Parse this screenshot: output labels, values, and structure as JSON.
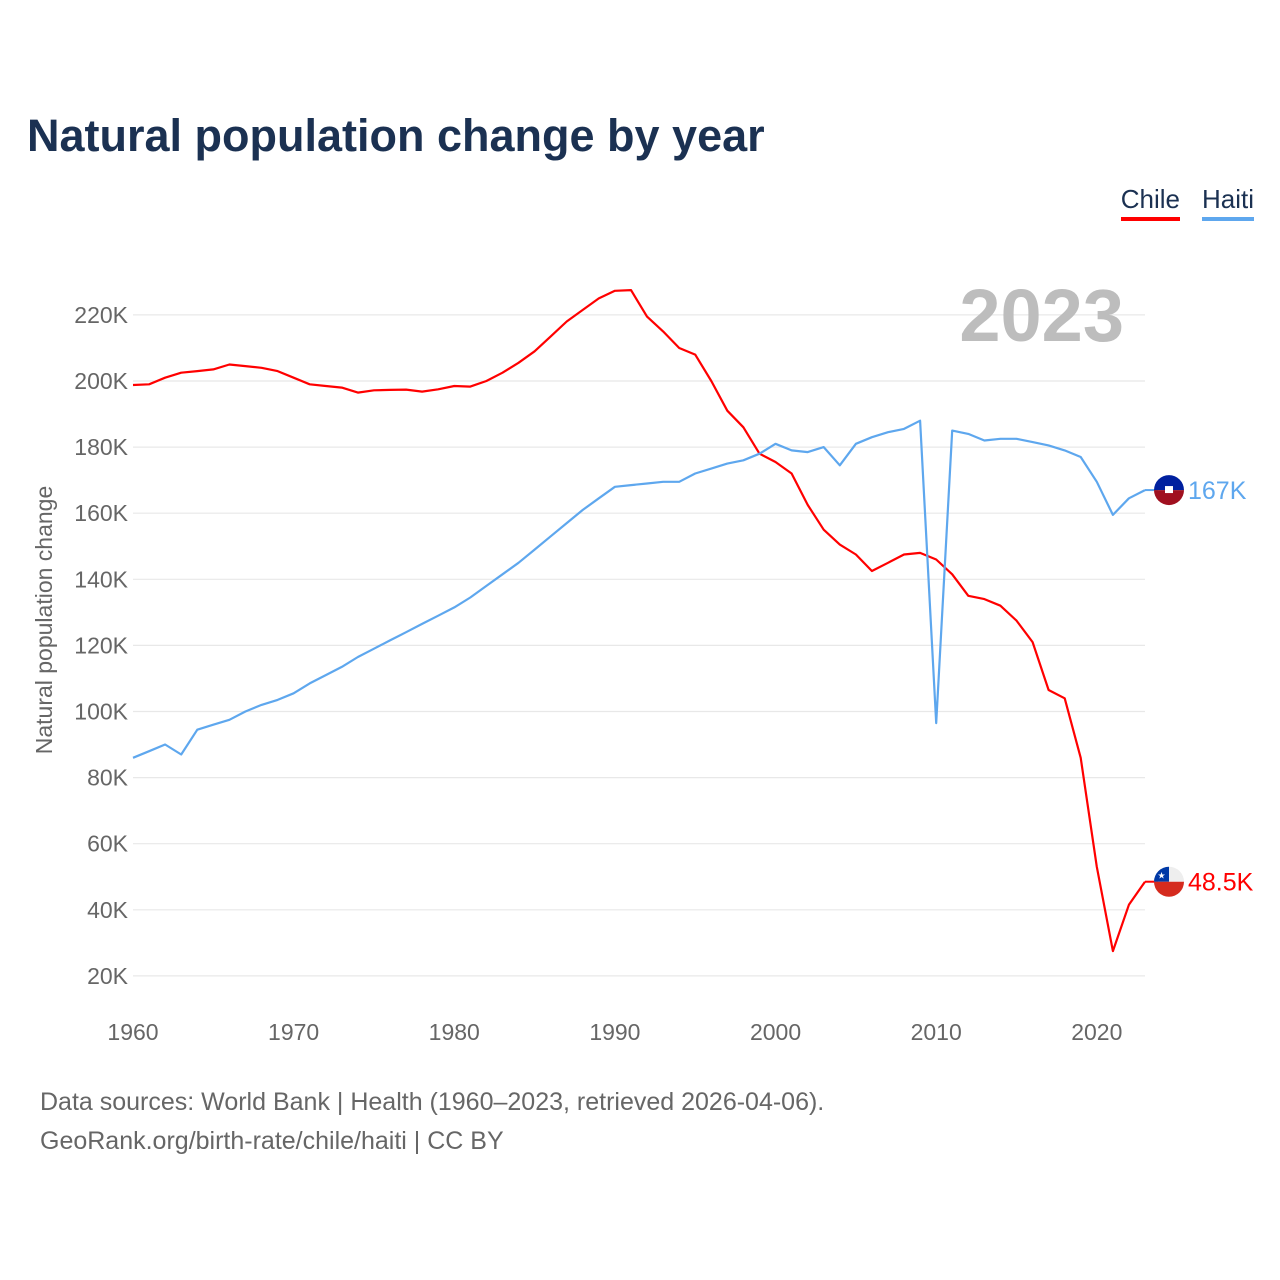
{
  "chart_data": {
    "type": "line",
    "title": "Natural population change by year",
    "ylabel": "Natural population change",
    "xlabel": "",
    "ylim": [
      10000,
      232000
    ],
    "xlim": [
      1960,
      2023
    ],
    "yticks": [
      20000,
      40000,
      60000,
      80000,
      100000,
      120000,
      140000,
      160000,
      180000,
      200000,
      220000
    ],
    "ytick_labels": [
      "20K",
      "40K",
      "60K",
      "80K",
      "100K",
      "120K",
      "140K",
      "160K",
      "180K",
      "200K",
      "220K"
    ],
    "xticks": [
      1960,
      1970,
      1980,
      1990,
      2000,
      2010,
      2020
    ],
    "xtick_labels": [
      "1960",
      "1970",
      "1980",
      "1990",
      "2000",
      "2010",
      "2020"
    ],
    "grid": true,
    "legend_placement": "top-right",
    "year_label": "2023",
    "x": [
      1960,
      1961,
      1962,
      1963,
      1964,
      1965,
      1966,
      1967,
      1968,
      1969,
      1970,
      1971,
      1972,
      1973,
      1974,
      1975,
      1976,
      1977,
      1978,
      1979,
      1980,
      1981,
      1982,
      1983,
      1984,
      1985,
      1986,
      1987,
      1988,
      1989,
      1990,
      1991,
      1992,
      1993,
      1994,
      1995,
      1996,
      1997,
      1998,
      1999,
      2000,
      2001,
      2002,
      2003,
      2004,
      2005,
      2006,
      2007,
      2008,
      2009,
      2010,
      2011,
      2012,
      2013,
      2014,
      2015,
      2016,
      2017,
      2018,
      2019,
      2020,
      2021,
      2022,
      2023
    ],
    "series": [
      {
        "name": "Chile",
        "color": "#ff0000",
        "end_label": "48.5K",
        "values": [
          198800,
          199000,
          201000,
          202500,
          203000,
          203500,
          205000,
          204500,
          204000,
          203000,
          201000,
          199000,
          198500,
          198000,
          196500,
          197200,
          197300,
          197400,
          196800,
          197500,
          198500,
          198300,
          200000,
          202500,
          205500,
          209000,
          213500,
          218000,
          221500,
          225000,
          227300,
          227500,
          219500,
          215000,
          210000,
          208000,
          200000,
          191000,
          186000,
          178000,
          175500,
          172000,
          162500,
          155000,
          150500,
          147500,
          142500,
          145000,
          147500,
          148000,
          146000,
          141500,
          135000,
          134000,
          132000,
          127500,
          121000,
          106500,
          104000,
          86000,
          53000,
          27500,
          41500,
          48500
        ]
      },
      {
        "name": "Haiti",
        "color": "#5ea7ee",
        "end_label": "167K",
        "values": [
          86000,
          88000,
          90000,
          87000,
          94500,
          96000,
          97500,
          100000,
          102000,
          103500,
          105500,
          108500,
          111000,
          113500,
          116500,
          119000,
          121500,
          124000,
          126500,
          129000,
          131500,
          134500,
          138000,
          141500,
          145000,
          149000,
          153000,
          157000,
          161000,
          164500,
          168000,
          168500,
          169000,
          169500,
          169500,
          172000,
          173500,
          175000,
          176000,
          178000,
          181000,
          179000,
          178500,
          180000,
          174500,
          181000,
          183000,
          184500,
          185500,
          188000,
          96500,
          185000,
          184000,
          182000,
          182500,
          182500,
          181500,
          180500,
          179000,
          177000,
          169500,
          159500,
          164500,
          167000
        ]
      }
    ]
  },
  "footer": {
    "line1": "Data sources: World Bank | Health (1960–2023, retrieved 2026-04-06).",
    "line2": "GeoRank.org/birth-rate/chile/haiti | CC BY"
  }
}
